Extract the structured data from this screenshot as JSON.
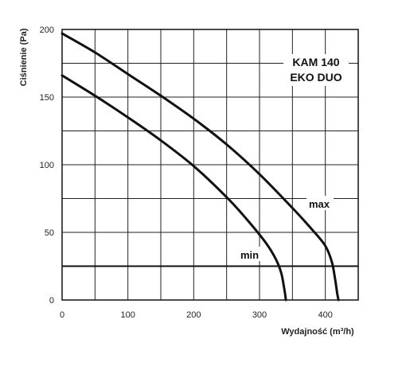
{
  "chart_data": {
    "type": "line",
    "title": "",
    "xlabel": "Wydajność (m³/h)",
    "ylabel": "Ciśnienie (Pa)",
    "xlim": [
      0,
      450
    ],
    "ylim": [
      0,
      200
    ],
    "x_ticks": [
      0,
      100,
      200,
      300,
      400
    ],
    "y_ticks": [
      0,
      50,
      100,
      150,
      200
    ],
    "grid": true,
    "annotations": {
      "model_line1": "KAM 140",
      "model_line2": "EKO DUO"
    },
    "reference_line": {
      "y": 25
    },
    "series": [
      {
        "name": "max",
        "x": [
          0,
          50,
          100,
          150,
          200,
          250,
          300,
          350,
          380,
          400,
          410,
          415,
          418,
          420
        ],
        "y": [
          197,
          183,
          167,
          151,
          134,
          115,
          93,
          68,
          52,
          40,
          28,
          15,
          5,
          0
        ]
      },
      {
        "name": "min",
        "x": [
          0,
          50,
          100,
          150,
          200,
          250,
          280,
          310,
          325,
          333,
          337,
          339,
          340
        ],
        "y": [
          166,
          151,
          135,
          118,
          99,
          76,
          60,
          42,
          30,
          20,
          10,
          4,
          0
        ]
      }
    ]
  }
}
